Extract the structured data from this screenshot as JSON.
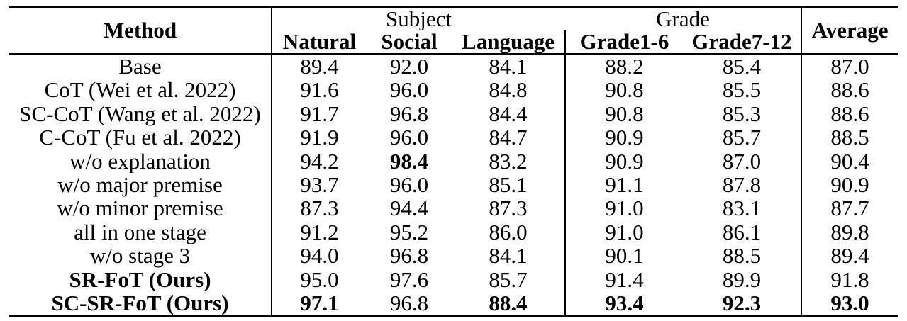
{
  "colors": {
    "text": "#000000",
    "background": "#ffffff",
    "border": "#000000"
  },
  "table": {
    "method_header": "Method",
    "average_header": "Average",
    "group_headers": [
      {
        "label": "Subject",
        "span": 3
      },
      {
        "label": "Grade",
        "span": 2
      }
    ],
    "sub_headers": [
      "Natural",
      "Social",
      "Language",
      "Grade1-6",
      "Grade7-12"
    ],
    "rows": [
      {
        "method": "Base",
        "method_bold": false,
        "values": [
          "89.4",
          "92.0",
          "84.1",
          "88.2",
          "85.4",
          "87.0"
        ],
        "bold": [
          0,
          0,
          0,
          0,
          0,
          0
        ]
      },
      {
        "method": "CoT (Wei et al. 2022)",
        "method_bold": false,
        "values": [
          "91.6",
          "96.0",
          "84.8",
          "90.8",
          "85.5",
          "88.6"
        ],
        "bold": [
          0,
          0,
          0,
          0,
          0,
          0
        ]
      },
      {
        "method": "SC-CoT (Wang et al. 2022)",
        "method_bold": false,
        "values": [
          "91.7",
          "96.8",
          "84.4",
          "90.8",
          "85.3",
          "88.6"
        ],
        "bold": [
          0,
          0,
          0,
          0,
          0,
          0
        ]
      },
      {
        "method": "C-CoT (Fu et al. 2022)",
        "method_bold": false,
        "values": [
          "91.9",
          "96.0",
          "84.7",
          "90.9",
          "85.7",
          "88.5"
        ],
        "bold": [
          0,
          0,
          0,
          0,
          0,
          0
        ]
      },
      {
        "method": "w/o explanation",
        "method_bold": false,
        "values": [
          "94.2",
          "98.4",
          "83.2",
          "90.9",
          "87.0",
          "90.4"
        ],
        "bold": [
          0,
          1,
          0,
          0,
          0,
          0
        ]
      },
      {
        "method": "w/o major premise",
        "method_bold": false,
        "values": [
          "93.7",
          "96.0",
          "85.1",
          "91.1",
          "87.8",
          "90.9"
        ],
        "bold": [
          0,
          0,
          0,
          0,
          0,
          0
        ]
      },
      {
        "method": "w/o minor premise",
        "method_bold": false,
        "values": [
          "87.3",
          "94.4",
          "87.3",
          "91.0",
          "83.1",
          "87.7"
        ],
        "bold": [
          0,
          0,
          0,
          0,
          0,
          0
        ]
      },
      {
        "method": "all in one stage",
        "method_bold": false,
        "values": [
          "91.2",
          "95.2",
          "86.0",
          "91.0",
          "86.1",
          "89.8"
        ],
        "bold": [
          0,
          0,
          0,
          0,
          0,
          0
        ]
      },
      {
        "method": "w/o stage 3",
        "method_bold": false,
        "values": [
          "94.0",
          "96.8",
          "84.1",
          "90.1",
          "88.5",
          "89.4"
        ],
        "bold": [
          0,
          0,
          0,
          0,
          0,
          0
        ]
      },
      {
        "method": "SR-FoT (Ours)",
        "method_bold": true,
        "values": [
          "95.0",
          "97.6",
          "85.7",
          "91.4",
          "89.9",
          "91.8"
        ],
        "bold": [
          0,
          0,
          0,
          0,
          0,
          0
        ]
      },
      {
        "method": "SC-SR-FoT (Ours)",
        "method_bold": true,
        "values": [
          "97.1",
          "96.8",
          "88.4",
          "93.4",
          "92.3",
          "93.0"
        ],
        "bold": [
          1,
          0,
          1,
          1,
          1,
          1
        ]
      }
    ]
  }
}
